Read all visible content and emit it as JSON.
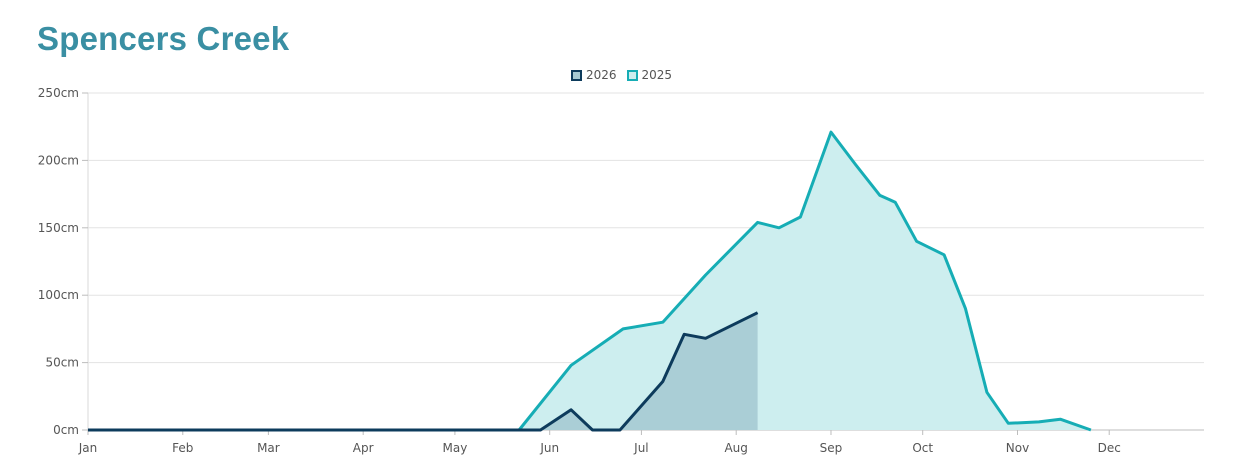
{
  "title": "Spencers Creek",
  "legend": [
    {
      "label": "2026",
      "color": "#0d3b5c",
      "fill": "#a6cad3"
    },
    {
      "label": "2025",
      "color": "#16adb5",
      "fill": "#cdeeef"
    }
  ],
  "chart_data": {
    "type": "area",
    "title": "Spencers Creek",
    "xlabel": "",
    "ylabel": "",
    "x_ticks": [
      "Jan",
      "Feb",
      "Mar",
      "Apr",
      "May",
      "Jun",
      "Jul",
      "Aug",
      "Sep",
      "Oct",
      "Nov",
      "Dec"
    ],
    "y_ticks": [
      "0cm",
      "50cm",
      "100cm",
      "150cm",
      "200cm",
      "250cm"
    ],
    "ylim": [
      0,
      250
    ],
    "grid": true,
    "legend_position": "top-center",
    "series": [
      {
        "name": "2025",
        "color": "#16adb5",
        "points": [
          [
            "01-01",
            0
          ],
          [
            "05-22",
            0
          ],
          [
            "06-08",
            48
          ],
          [
            "06-25",
            75
          ],
          [
            "07-08",
            80
          ],
          [
            "07-22",
            115
          ],
          [
            "08-08",
            154
          ],
          [
            "08-15",
            150
          ],
          [
            "08-22",
            158
          ],
          [
            "09-01",
            221
          ],
          [
            "09-09",
            197
          ],
          [
            "09-17",
            174
          ],
          [
            "09-22",
            169
          ],
          [
            "09-29",
            140
          ],
          [
            "10-08",
            130
          ],
          [
            "10-15",
            90
          ],
          [
            "10-22",
            28
          ],
          [
            "10-29",
            5
          ],
          [
            "11-08",
            6
          ],
          [
            "11-15",
            8
          ],
          [
            "11-25",
            0
          ]
        ]
      },
      {
        "name": "2026",
        "color": "#0d3b5c",
        "points": [
          [
            "01-01",
            0
          ],
          [
            "05-29",
            0
          ],
          [
            "06-08",
            15
          ],
          [
            "06-15",
            0
          ],
          [
            "06-24",
            0
          ],
          [
            "07-08",
            36
          ],
          [
            "07-15",
            71
          ],
          [
            "07-22",
            68
          ],
          [
            "08-08",
            87
          ]
        ]
      }
    ]
  }
}
